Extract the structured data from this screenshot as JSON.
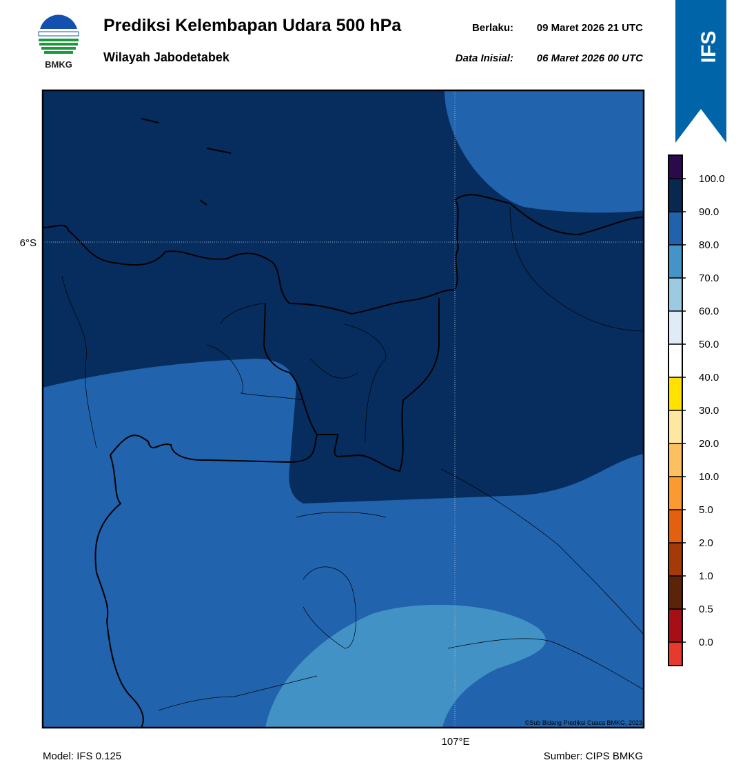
{
  "header": {
    "title": "Prediksi Kelembapan Udara 500 hPa",
    "subtitle": "Wilayah Jabodetabek",
    "valid_label": "Berlaku:",
    "valid_time": "09 Maret 2026 21 UTC",
    "initial_label": "Data Inisial:",
    "initial_time": "06 Maret 2026 00 UTC",
    "logo_text": "BMKG",
    "badge": "IFS"
  },
  "map": {
    "lat_label": "6°S",
    "lon_label": "107°E",
    "credit": "©Sub Bidang Prediksi Cuaca BMKG, 2023"
  },
  "colorbar": {
    "labels": [
      "0.0",
      "0.5",
      "1.0",
      "2.0",
      "5.0",
      "10.0",
      "20.0",
      "30.0",
      "40.0",
      "50.0",
      "60.0",
      "70.0",
      "80.0",
      "90.0",
      "100.0"
    ],
    "colors": [
      "#e7392c",
      "#a50f15",
      "#5b2408",
      "#a33a08",
      "#e26010",
      "#fb9a30",
      "#fdc060",
      "#fee7a0",
      "#ffe200",
      "#ffffff",
      "#dfecf7",
      "#9ccae1",
      "#4494c7",
      "#2062ac",
      "#08284f",
      "#2a0a4a"
    ]
  },
  "footer": {
    "model": "Model: IFS 0.125",
    "source": "Sumber: CIPS BMKG"
  }
}
